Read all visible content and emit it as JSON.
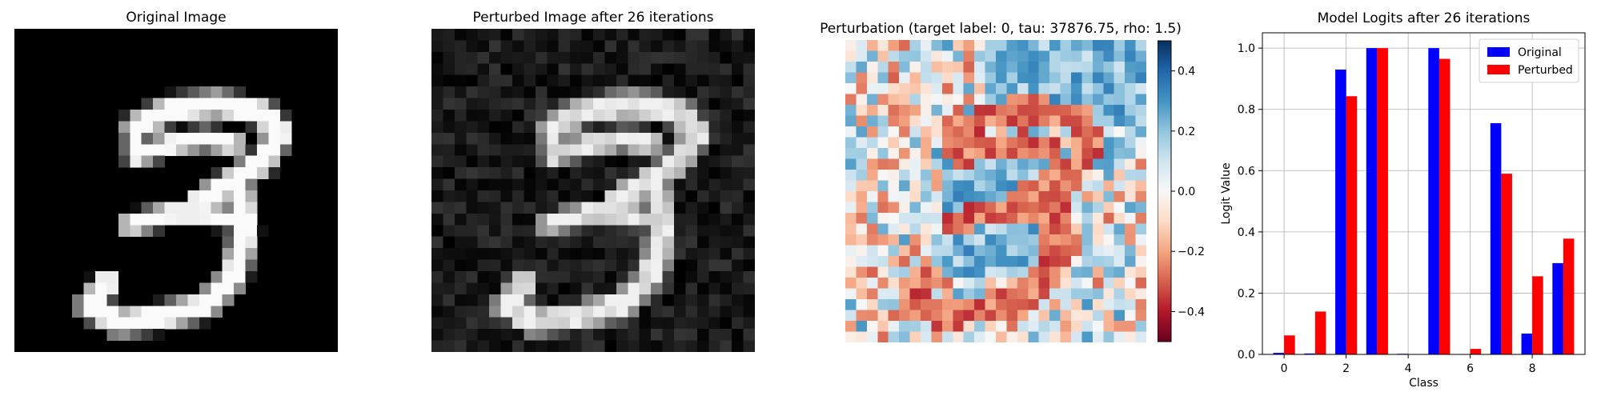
{
  "panels": {
    "original": {
      "title": "Original Image"
    },
    "perturbed": {
      "title": "Perturbed Image after 26 iterations"
    },
    "perturbation": {
      "title": "Perturbation (target label: 0, tau: 37876.75, rho: 1.5)",
      "colorbar_ticks": [
        "0.4",
        "0.2",
        "0.0",
        "−0.2",
        "−0.4"
      ],
      "colormap": "RdBu",
      "range": [
        -0.5,
        0.5
      ]
    }
  },
  "chart_data": {
    "type": "bar",
    "title": "Model Logits after 26 iterations",
    "xlabel": "Class",
    "ylabel": "Logit Value",
    "categories": [
      0,
      1,
      2,
      3,
      4,
      5,
      6,
      7,
      8,
      9
    ],
    "xticks": [
      "0",
      "2",
      "4",
      "6",
      "8"
    ],
    "yticks": [
      "0.0",
      "0.2",
      "0.4",
      "0.6",
      "0.8",
      "1.0"
    ],
    "ylim": [
      0,
      1.05
    ],
    "grid": true,
    "legend_position": "top-right",
    "series": [
      {
        "name": "Original",
        "color": "#0000ff",
        "values": [
          0.005,
          0.003,
          0.93,
          1.0,
          0.002,
          1.0,
          0.0,
          0.755,
          0.068,
          0.298
        ]
      },
      {
        "name": "Perturbed",
        "color": "#ff0000",
        "values": [
          0.062,
          0.14,
          0.843,
          1.0,
          0.001,
          0.965,
          0.018,
          0.59,
          0.255,
          0.378
        ]
      }
    ]
  }
}
